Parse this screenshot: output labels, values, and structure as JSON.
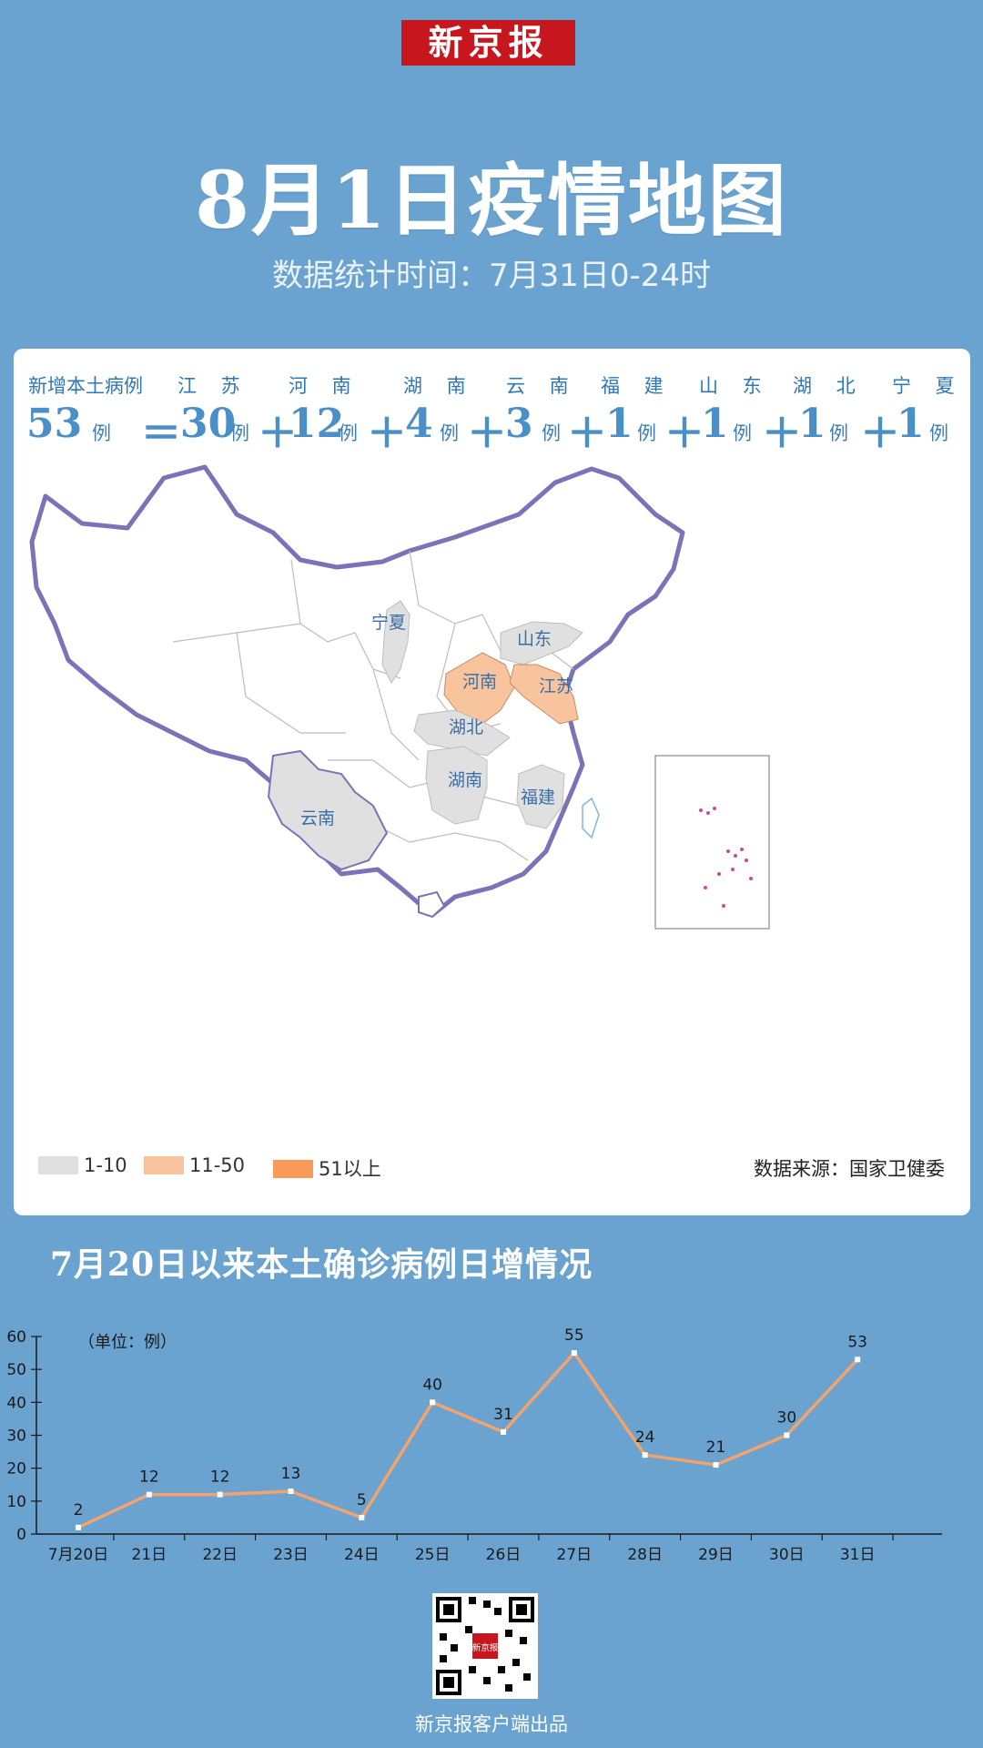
{
  "brand": {
    "logo": "新京报"
  },
  "header": {
    "title": "8月1日疫情地图",
    "subtitle": "数据统计时间：7月31日0-24时"
  },
  "stats": {
    "total_label": "新增本土病例",
    "total_value": "53",
    "unit": "例",
    "equals": "＝",
    "plus": "＋",
    "provinces": [
      {
        "name": "江 苏",
        "value": "30"
      },
      {
        "name": "河 南",
        "value": "12"
      },
      {
        "name": "湖 南",
        "value": "4"
      },
      {
        "name": "云 南",
        "value": "3"
      },
      {
        "name": "福 建",
        "value": "1"
      },
      {
        "name": "山 东",
        "value": "1"
      },
      {
        "name": "湖 北",
        "value": "1"
      },
      {
        "name": "宁 夏",
        "value": "1"
      }
    ]
  },
  "map": {
    "labels": [
      "宁夏",
      "山东",
      "河南",
      "江苏",
      "湖北",
      "湖南",
      "福建",
      "云南"
    ],
    "colors": {
      "low": "#e0e0e0",
      "mid": "#f8c49d",
      "high": "#f79a5a",
      "border": "#7b72b8"
    }
  },
  "legend": [
    {
      "label": "1-10",
      "color": "#e0e0e0"
    },
    {
      "label": "11-50",
      "color": "#f8c49d"
    },
    {
      "label": "51以上",
      "color": "#f79a5a"
    }
  ],
  "source": "数据来源：国家卫健委",
  "chart_data": {
    "type": "line",
    "title": "7月20日以来本土确诊病例日增情况",
    "unit_note": "（单位：例）",
    "categories": [
      "7月20日",
      "21日",
      "22日",
      "23日",
      "24日",
      "25日",
      "26日",
      "27日",
      "28日",
      "29日",
      "30日",
      "31日"
    ],
    "values": [
      2,
      12,
      12,
      13,
      5,
      40,
      31,
      55,
      24,
      21,
      30,
      53
    ],
    "yticks": [
      "0",
      "10",
      "20",
      "30",
      "40",
      "50",
      "60"
    ],
    "ylim": [
      0,
      60
    ],
    "line_color": "#f3a36b",
    "grid": false
  },
  "footer": {
    "text": "新京报客户端出品",
    "qr_label": "新京报"
  }
}
